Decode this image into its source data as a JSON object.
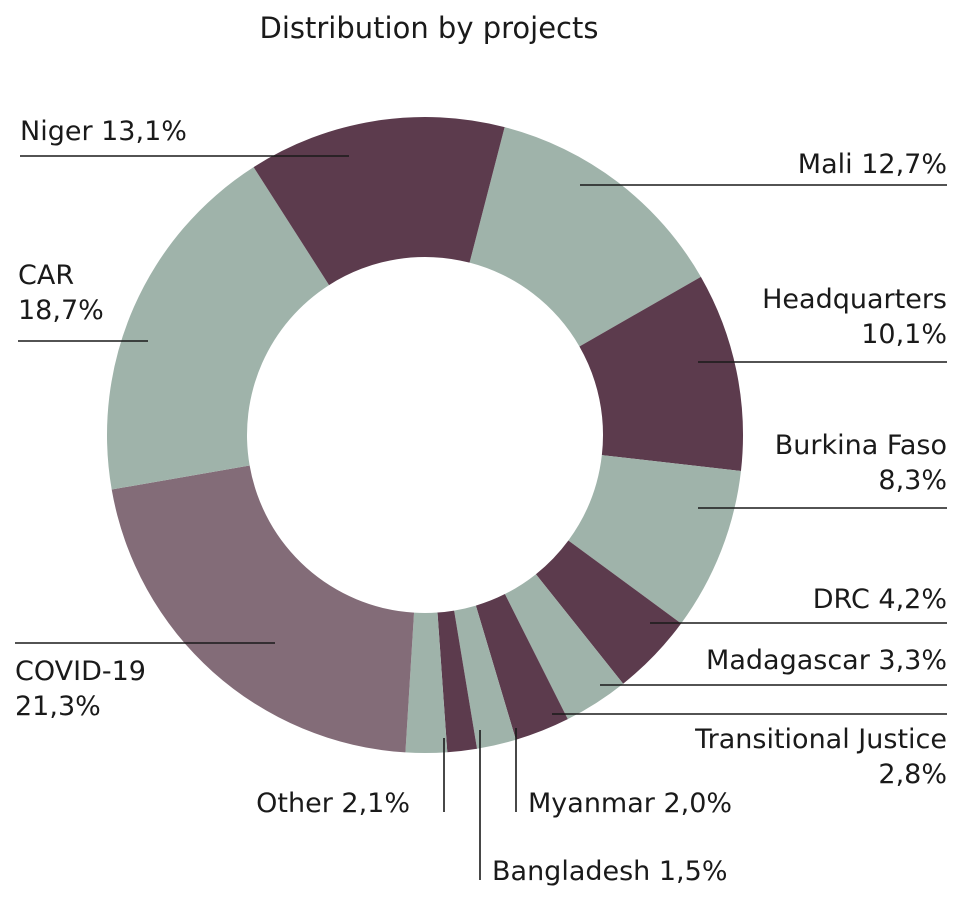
{
  "chart_data": {
    "type": "pie",
    "donut": true,
    "title": "Distribution by projects",
    "series": [
      {
        "label": "Mali",
        "value": 12.7,
        "display": "Mali 12,7%",
        "color": "#9fb3aa"
      },
      {
        "label": "Headquarters",
        "value": 10.1,
        "display": "Headquarters 10,1%",
        "color": "#5c3b4d"
      },
      {
        "label": "Burkina Faso",
        "value": 8.3,
        "display": "Burkina Faso 8,3%",
        "color": "#9fb3aa"
      },
      {
        "label": "DRC",
        "value": 4.2,
        "display": "DRC 4,2%",
        "color": "#5c3b4d"
      },
      {
        "label": "Madagascar",
        "value": 3.3,
        "display": "Madagascar 3,3%",
        "color": "#9fb3aa"
      },
      {
        "label": "Transitional Justice",
        "value": 2.8,
        "display": "Transitional Justice 2,8%",
        "color": "#5c3b4d"
      },
      {
        "label": "Myanmar",
        "value": 2.0,
        "display": "Myanmar 2,0%",
        "color": "#9fb3aa"
      },
      {
        "label": "Bangladesh",
        "value": 1.5,
        "display": "Bangladesh 1,5%",
        "color": "#5c3b4d"
      },
      {
        "label": "Other",
        "value": 2.1,
        "display": "Other 2,1%",
        "color": "#9fb3aa"
      },
      {
        "label": "COVID-19",
        "value": 21.3,
        "display": "COVID-19 21,3%",
        "color": "#836c78"
      },
      {
        "label": "CAR",
        "value": 18.7,
        "display": "CAR 18,7%",
        "color": "#9fb3aa"
      },
      {
        "label": "Niger",
        "value": 13.1,
        "display": "Niger 13,1%",
        "color": "#5c3b4d"
      }
    ]
  }
}
